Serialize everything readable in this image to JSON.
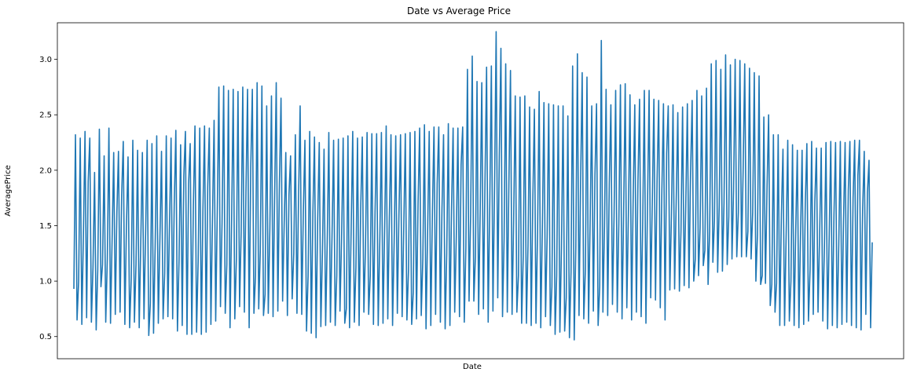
{
  "chart_data": {
    "type": "line",
    "title": "Date vs Average Price",
    "xlabel": "Date",
    "ylabel": "AveragePrice",
    "ylim": [
      0.3,
      3.33
    ],
    "yticks": [
      "0.5",
      "1.0",
      "1.5",
      "2.0",
      "2.5",
      "3.0"
    ],
    "x_tick_labels_shown": false,
    "grid": false,
    "legend": "none",
    "series": [
      {
        "color": "#1f77b4",
        "values": [
          0.93,
          2.32,
          0.65,
          1.0,
          2.29,
          0.61,
          1.43,
          2.35,
          0.67,
          1.9,
          2.29,
          0.63,
          1.12,
          1.98,
          0.56,
          1.1,
          2.37,
          0.95,
          1.15,
          2.13,
          0.63,
          1.2,
          2.38,
          0.62,
          1.37,
          2.16,
          0.7,
          1.62,
          2.17,
          0.72,
          1.78,
          2.26,
          0.61,
          1.5,
          2.12,
          0.58,
          1.02,
          2.27,
          0.63,
          1.15,
          2.18,
          0.58,
          1.36,
          2.16,
          0.66,
          1.42,
          2.27,
          0.51,
          0.8,
          2.24,
          0.53,
          1.3,
          2.31,
          0.62,
          1.38,
          2.17,
          0.66,
          1.07,
          2.31,
          0.68,
          1.5,
          2.29,
          0.66,
          1.7,
          2.36,
          0.55,
          1.18,
          2.23,
          0.6,
          1.95,
          2.35,
          0.52,
          1.88,
          2.24,
          0.52,
          1.68,
          2.4,
          0.54,
          1.18,
          2.38,
          0.52,
          1.65,
          2.4,
          0.54,
          1.85,
          2.38,
          0.61,
          1.58,
          2.45,
          0.64,
          1.62,
          2.75,
          0.77,
          1.53,
          2.76,
          0.71,
          1.15,
          2.72,
          0.58,
          1.55,
          2.73,
          0.66,
          1.2,
          2.71,
          0.77,
          1.45,
          2.75,
          0.72,
          1.81,
          2.73,
          0.58,
          2.02,
          2.73,
          0.71,
          1.05,
          2.79,
          0.75,
          1.28,
          2.76,
          0.69,
          0.88,
          2.58,
          0.71,
          1.48,
          2.67,
          0.68,
          1.78,
          2.79,
          0.73,
          1.88,
          2.65,
          0.82,
          1.52,
          2.16,
          0.69,
          1.78,
          2.13,
          0.84,
          1.25,
          2.32,
          0.71,
          1.75,
          2.58,
          0.7,
          1.62,
          2.27,
          0.55,
          1.05,
          2.35,
          0.53,
          1.62,
          2.3,
          0.49,
          1.55,
          2.25,
          0.59,
          1.27,
          2.19,
          0.6,
          1.35,
          2.34,
          0.63,
          1.4,
          2.27,
          0.6,
          1.05,
          2.28,
          0.73,
          1.38,
          2.29,
          0.62,
          0.75,
          2.31,
          0.58,
          1.45,
          2.35,
          0.63,
          1.12,
          2.29,
          0.6,
          1.65,
          2.3,
          0.72,
          1.3,
          2.34,
          0.7,
          1.05,
          2.33,
          0.61,
          1.62,
          2.33,
          0.6,
          1.38,
          2.34,
          0.62,
          1.45,
          2.4,
          0.66,
          1.58,
          2.32,
          0.6,
          1.35,
          2.31,
          0.71,
          1.6,
          2.32,
          0.68,
          1.45,
          2.33,
          0.65,
          1.1,
          2.34,
          0.61,
          0.9,
          2.35,
          0.66,
          1.7,
          2.38,
          0.69,
          1.2,
          2.41,
          0.57,
          1.45,
          2.35,
          0.6,
          1.62,
          2.39,
          0.7,
          1.88,
          2.39,
          0.63,
          1.65,
          2.32,
          0.57,
          1.25,
          2.42,
          0.6,
          1.65,
          2.38,
          0.72,
          1.4,
          2.38,
          0.68,
          2.05,
          2.39,
          0.63,
          1.3,
          2.91,
          0.82,
          1.6,
          3.03,
          0.82,
          1.22,
          2.8,
          0.7,
          1.65,
          2.79,
          0.75,
          1.9,
          2.93,
          0.63,
          1.7,
          2.94,
          0.73,
          1.85,
          3.25,
          0.85,
          2.15,
          3.1,
          0.68,
          1.38,
          2.96,
          0.72,
          1.88,
          2.9,
          0.7,
          1.55,
          2.67,
          0.72,
          1.05,
          2.66,
          0.62,
          1.22,
          2.67,
          0.62,
          1.32,
          2.57,
          0.6,
          1.72,
          2.55,
          0.62,
          1.45,
          2.71,
          0.58,
          1.48,
          2.61,
          0.68,
          1.4,
          2.6,
          0.6,
          0.95,
          2.59,
          0.52,
          1.05,
          2.58,
          0.54,
          1.3,
          2.58,
          0.55,
          0.85,
          2.49,
          0.49,
          1.08,
          2.94,
          0.47,
          1.3,
          3.05,
          0.69,
          1.9,
          2.88,
          0.66,
          1.1,
          2.84,
          0.62,
          1.55,
          2.58,
          0.73,
          1.95,
          2.6,
          0.6,
          0.95,
          3.17,
          0.72,
          1.5,
          2.73,
          0.69,
          1.88,
          2.59,
          0.79,
          1.58,
          2.72,
          0.72,
          1.52,
          2.77,
          0.66,
          1.6,
          2.78,
          0.76,
          1.6,
          2.68,
          0.65,
          1.75,
          2.59,
          0.72,
          1.9,
          2.64,
          0.68,
          1.55,
          2.72,
          0.62,
          1.7,
          2.72,
          0.85,
          1.72,
          2.64,
          0.83,
          1.92,
          2.63,
          0.76,
          1.82,
          2.6,
          0.65,
          2.15,
          2.58,
          0.92,
          1.58,
          2.59,
          0.93,
          1.72,
          2.52,
          0.91,
          1.45,
          2.57,
          0.96,
          1.68,
          2.6,
          0.94,
          1.97,
          2.63,
          1.0,
          1.2,
          2.72,
          1.05,
          1.48,
          2.67,
          1.14,
          1.28,
          2.74,
          0.97,
          1.45,
          2.96,
          1.17,
          1.55,
          2.99,
          1.08,
          1.68,
          2.91,
          1.09,
          1.7,
          3.04,
          1.15,
          1.58,
          2.95,
          1.2,
          1.82,
          3.0,
          1.22,
          1.62,
          2.99,
          1.22,
          2.0,
          2.96,
          1.22,
          1.45,
          2.92,
          1.2,
          1.62,
          2.88,
          1.0,
          1.42,
          2.85,
          0.97,
          1.05,
          2.48,
          0.98,
          1.85,
          2.5,
          0.78,
          0.97,
          2.32,
          0.72,
          0.98,
          2.32,
          0.6,
          1.6,
          2.19,
          0.6,
          1.42,
          2.27,
          0.64,
          1.0,
          2.23,
          0.6,
          1.45,
          2.18,
          0.58,
          1.4,
          2.18,
          0.61,
          1.7,
          2.24,
          0.64,
          1.1,
          2.26,
          0.7,
          1.72,
          2.2,
          0.72,
          1.42,
          2.2,
          0.64,
          1.3,
          2.25,
          0.57,
          1.4,
          2.26,
          0.6,
          1.6,
          2.25,
          0.58,
          1.32,
          2.26,
          0.61,
          1.55,
          2.25,
          0.63,
          1.82,
          2.26,
          0.6,
          1.75,
          2.27,
          0.58,
          1.95,
          2.27,
          0.56,
          1.65,
          2.17,
          0.7,
          1.8,
          2.09,
          0.58,
          1.35
        ]
      }
    ]
  }
}
